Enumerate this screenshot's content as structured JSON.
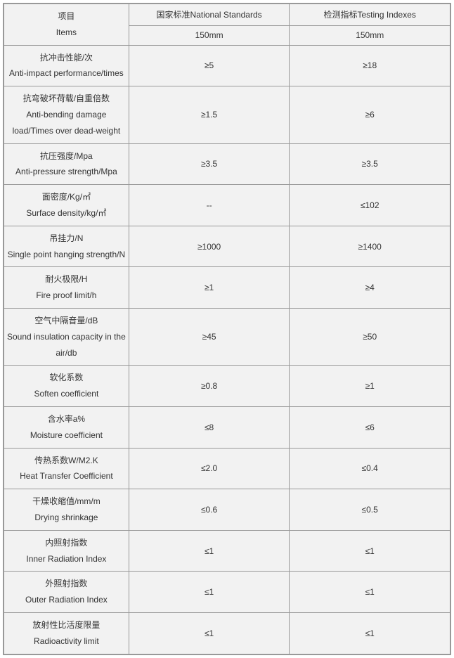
{
  "table": {
    "type": "table",
    "background_color": "#f2f2f2",
    "border_color": "#999999",
    "text_color": "#333333",
    "font_size": 12,
    "header": {
      "item_label_cn": "项目",
      "item_label_en": "Items",
      "col2_label": "国家标准National Standards",
      "col3_label": "检测指标Testing Indexes",
      "sub_col2": "150mm",
      "sub_col3": "150mm"
    },
    "rows": [
      {
        "label_cn": "抗冲击性能/次",
        "label_en": "Anti-impact performance/times",
        "v1": "≥5",
        "v2": "≥18"
      },
      {
        "label_cn": "抗弯破坏荷载/自重倍数",
        "label_en": "Anti-bending damage load/Times over dead-weight",
        "v1": "≥1.5",
        "v2": "≥6"
      },
      {
        "label_cn": "抗压强度/Mpa",
        "label_en": "Anti-pressure strength/Mpa",
        "v1": "≥3.5",
        "v2": "≥3.5"
      },
      {
        "label_cn": "面密度/Kg/㎡",
        "label_en": "Surface density/kg/㎡",
        "v1": "--",
        "v2": "≤102"
      },
      {
        "label_cn": "吊挂力/N",
        "label_en": "Single point hanging strength/N",
        "v1": "≥1000",
        "v2": "≥1400"
      },
      {
        "label_cn": "耐火极限/H",
        "label_en": "Fire proof limit/h",
        "v1": "≥1",
        "v2": "≥4"
      },
      {
        "label_cn": "空气中隔音量/dB",
        "label_en": "Sound insulation capacity in the air/db",
        "v1": "≥45",
        "v2": "≥50"
      },
      {
        "label_cn": "软化系数",
        "label_en": "Soften coefficient",
        "v1": "≥0.8",
        "v2": "≥1"
      },
      {
        "label_cn": "含水率a%",
        "label_en": "Moisture coefficient",
        "v1": "≤8",
        "v2": "≤6"
      },
      {
        "label_cn": "传热系数W/M2.K",
        "label_en": "Heat Transfer Coefficient",
        "v1": "≤2.0",
        "v2": "≤0.4"
      },
      {
        "label_cn": "干燥收缩值/mm/m",
        "label_en": "Drying shrinkage",
        "v1": "≤0.6",
        "v2": "≤0.5"
      },
      {
        "label_cn": "内照射指数",
        "label_en": "Inner Radiation Index",
        "v1": "≤1",
        "v2": "≤1"
      },
      {
        "label_cn": "外照射指数",
        "label_en": "Outer Radiation Index",
        "v1": "≤1",
        "v2": "≤1"
      },
      {
        "label_cn": "放射性比活度限量",
        "label_en": "Radioactivity limit",
        "v1": "≤1",
        "v2": "≤1"
      }
    ]
  }
}
